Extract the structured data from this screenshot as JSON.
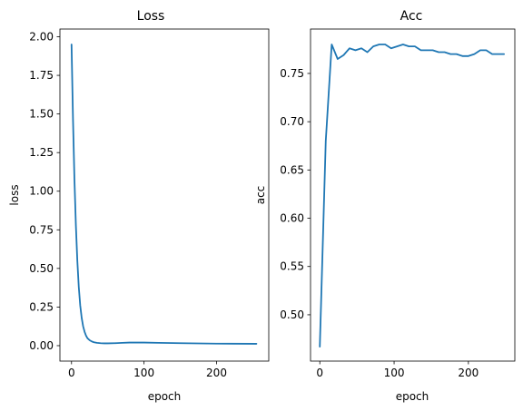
{
  "colors": {
    "series": "#1f77b4"
  },
  "chart_data": [
    {
      "type": "line",
      "title": "Loss",
      "xlabel": "epoch",
      "ylabel": "loss",
      "xlim": [
        -16,
        272
      ],
      "ylim": [
        -0.1,
        2.05
      ],
      "xticks": [
        0,
        100,
        200
      ],
      "yticks": [
        0.0,
        0.25,
        0.5,
        0.75,
        1.0,
        1.25,
        1.5,
        1.75,
        2.0
      ],
      "ytick_labels": [
        "0.00",
        "0.25",
        "0.50",
        "0.75",
        "1.00",
        "1.25",
        "1.50",
        "1.75",
        "2.00"
      ],
      "series": [
        {
          "x": [
            0,
            2,
            4,
            6,
            8,
            10,
            12,
            14,
            16,
            18,
            20,
            22,
            25,
            28,
            31,
            35,
            40,
            45,
            50,
            60,
            70,
            80,
            100,
            120,
            150,
            200,
            255
          ],
          "y": [
            1.95,
            1.47,
            1.08,
            0.78,
            0.55,
            0.38,
            0.26,
            0.18,
            0.125,
            0.09,
            0.065,
            0.048,
            0.035,
            0.027,
            0.022,
            0.018,
            0.016,
            0.015,
            0.015,
            0.016,
            0.018,
            0.02,
            0.02,
            0.018,
            0.016,
            0.013,
            0.012
          ]
        }
      ]
    },
    {
      "type": "line",
      "title": "Acc",
      "xlabel": "epoch",
      "ylabel": "acc",
      "xlim": [
        -12.5,
        262.5
      ],
      "ylim": [
        0.452,
        0.796
      ],
      "xticks": [
        0,
        100,
        200
      ],
      "yticks": [
        0.5,
        0.55,
        0.6,
        0.65,
        0.7,
        0.75
      ],
      "ytick_labels": [
        "0.50",
        "0.55",
        "0.60",
        "0.65",
        "0.70",
        "0.75"
      ],
      "series": [
        {
          "x": [
            0,
            8,
            16,
            24,
            32,
            40,
            48,
            56,
            64,
            72,
            80,
            88,
            96,
            104,
            112,
            120,
            128,
            136,
            144,
            152,
            160,
            168,
            176,
            184,
            192,
            200,
            208,
            216,
            224,
            232,
            240,
            248
          ],
          "y": [
            0.467,
            0.68,
            0.78,
            0.765,
            0.769,
            0.776,
            0.774,
            0.776,
            0.772,
            0.778,
            0.78,
            0.78,
            0.776,
            0.778,
            0.78,
            0.778,
            0.778,
            0.774,
            0.774,
            0.774,
            0.772,
            0.772,
            0.77,
            0.77,
            0.768,
            0.768,
            0.77,
            0.774,
            0.774,
            0.77,
            0.77,
            0.77
          ]
        }
      ]
    }
  ]
}
